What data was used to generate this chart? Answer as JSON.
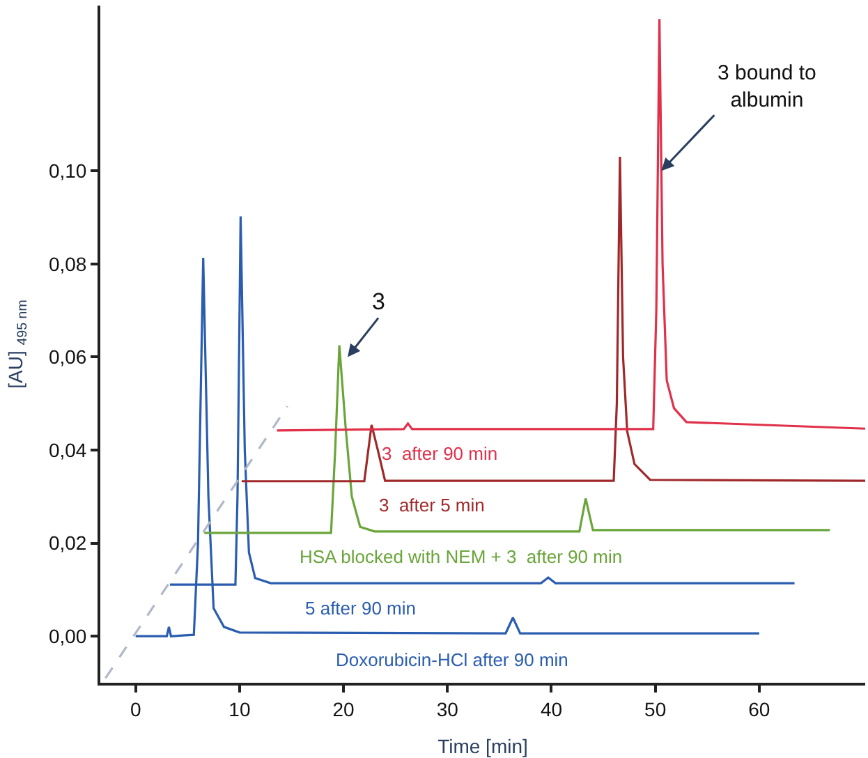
{
  "chart_data": {
    "type": "line",
    "xlabel": "Time [min]",
    "ylabel": "[AU] $_{495 nm}$",
    "xlim": [
      -3.4,
      70.2
    ],
    "xticks": [
      0,
      10,
      20,
      30,
      40,
      50,
      60
    ],
    "ylim": [
      -0.01,
      0.1355
    ],
    "yticks": [
      {
        "value": 0,
        "label": "0,00"
      },
      {
        "value": 0.02,
        "label": "0,02"
      },
      {
        "value": 0.04,
        "label": "0,04"
      },
      {
        "value": 0.06,
        "label": "0,06"
      },
      {
        "value": 0.08,
        "label": "0,08"
      },
      {
        "value": 0.1,
        "label": "0,10"
      }
    ],
    "legend": false,
    "marker": "none",
    "series": [
      {
        "name": "Doxorubicin-HCl after 90 min",
        "color": "#2a5db0",
        "x": [
          0,
          3.0,
          3.2,
          3.4,
          5.6,
          6.0,
          6.5,
          7.0,
          7.5,
          8.5,
          10,
          35.6,
          36.3,
          37.0,
          40,
          60
        ],
        "values": [
          0,
          0,
          0.002,
          0,
          0.0003,
          0.02,
          0.0813,
          0.03,
          0.006,
          0.002,
          0.0008,
          0.0006,
          0.004,
          0.0006,
          0.0006,
          0.0006
        ]
      },
      {
        "name": "5 after 90 min",
        "color": "#2a5db0",
        "x": [
          3.3,
          9.6,
          9.8,
          10.1,
          10.5,
          10.9,
          11.5,
          13,
          39,
          39.7,
          40.4,
          63.4
        ],
        "values": [
          0.0111,
          0.0111,
          0.03,
          0.0902,
          0.04,
          0.018,
          0.0125,
          0.0114,
          0.0114,
          0.0126,
          0.0114,
          0.0114
        ]
      },
      {
        "name": "HSA blocked with NEM + 3  after 90 min",
        "color": "#6aa53a",
        "x": [
          6.6,
          18.8,
          19.2,
          19.6,
          20.2,
          20.8,
          21.6,
          23,
          42.7,
          43.3,
          44.0,
          66.8
        ],
        "values": [
          0.0222,
          0.0222,
          0.04,
          0.0625,
          0.045,
          0.03,
          0.0235,
          0.0225,
          0.0225,
          0.0296,
          0.0228,
          0.0228
        ]
      },
      {
        "name": "3  after 5 min",
        "color": "#a0282a",
        "x": [
          10.2,
          22.0,
          22.7,
          23.3,
          24.0,
          46.0,
          46.3,
          46.6,
          46.9,
          47.3,
          48.0,
          49.5,
          70.2
        ],
        "values": [
          0.0333,
          0.0333,
          0.0454,
          0.04,
          0.0334,
          0.0334,
          0.05,
          0.103,
          0.06,
          0.044,
          0.037,
          0.0336,
          0.0334
        ]
      },
      {
        "name": "3  after 90 min",
        "color": "#e0304a",
        "x": [
          13.6,
          25.8,
          26.2,
          26.6,
          49.8,
          50.1,
          50.4,
          50.7,
          51.1,
          51.8,
          53,
          70.2
        ],
        "values": [
          0.0442,
          0.0445,
          0.0457,
          0.0445,
          0.0445,
          0.07,
          0.1326,
          0.08,
          0.055,
          0.049,
          0.046,
          0.0446
        ]
      },
      {
        "color": "#b0b8c8",
        "line_style": "dashed",
        "x": [
          -2.9,
          14.6
        ],
        "values": [
          -0.009,
          0.0494
        ]
      }
    ],
    "annotations": [
      {
        "text": "3",
        "x": 20.4,
        "y": 0.06
      },
      {
        "text": "3 bound to albumin",
        "x": 50.59,
        "y": 0.1
      }
    ]
  }
}
